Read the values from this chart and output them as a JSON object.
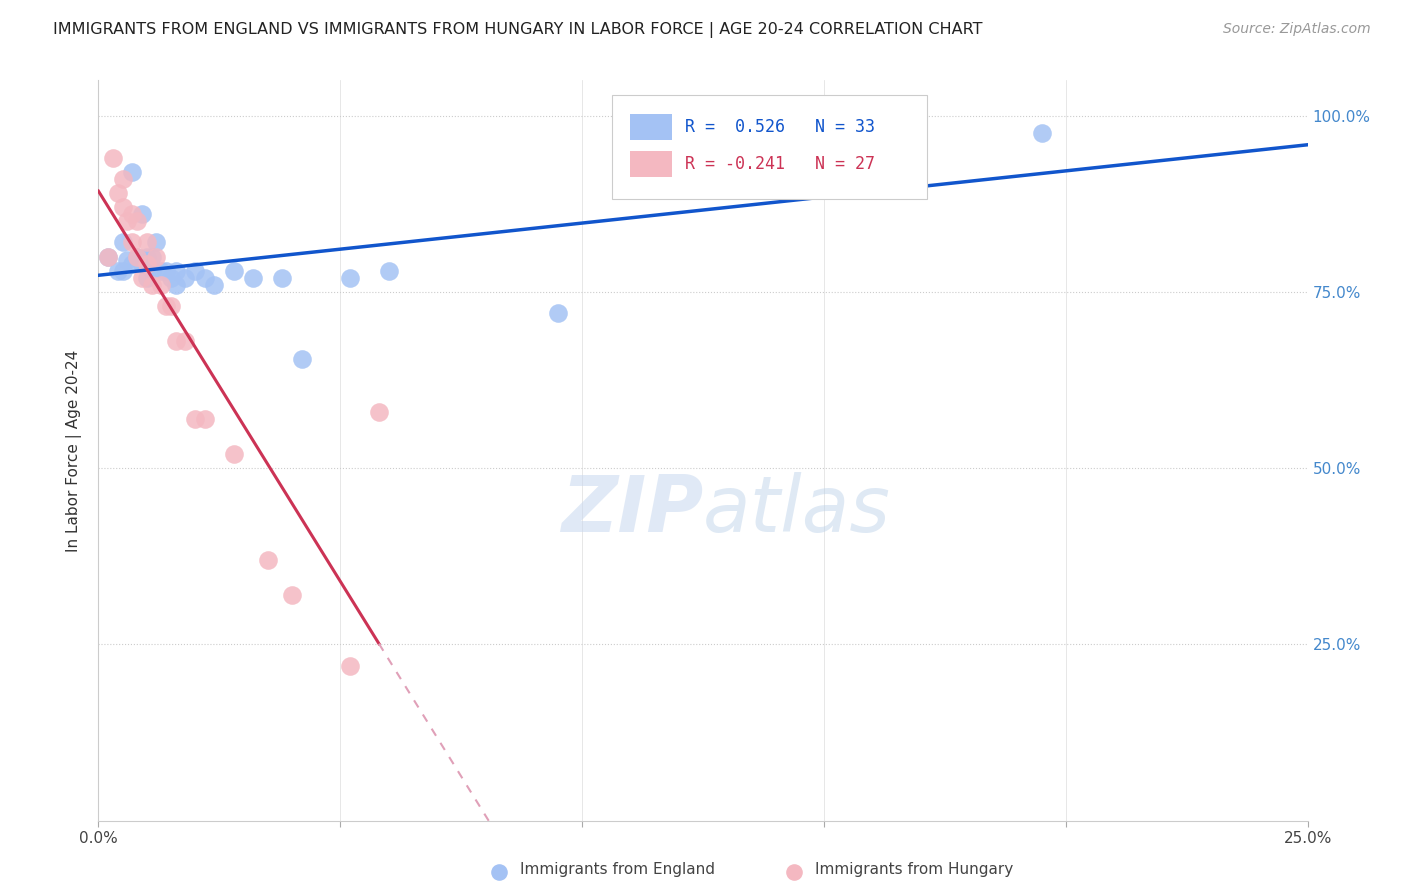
{
  "title": "IMMIGRANTS FROM ENGLAND VS IMMIGRANTS FROM HUNGARY IN LABOR FORCE | AGE 20-24 CORRELATION CHART",
  "source": "Source: ZipAtlas.com",
  "ylabel": "In Labor Force | Age 20-24",
  "xlim": [
    0.0,
    0.25
  ],
  "ylim": [
    0.0,
    1.05
  ],
  "y_ticks_right": [
    0.25,
    0.5,
    0.75,
    1.0
  ],
  "y_tick_labels_right": [
    "25.0%",
    "50.0%",
    "75.0%",
    "100.0%"
  ],
  "england_color": "#a4c2f4",
  "hungary_color": "#f4b8c1",
  "england_R": 0.526,
  "england_N": 33,
  "hungary_R": -0.241,
  "hungary_N": 27,
  "england_line_color": "#1155cc",
  "hungary_line_solid_color": "#cc3355",
  "hungary_line_dash_color": "#e0a0b8",
  "legend_label_england": "Immigrants from England",
  "legend_label_hungary": "Immigrants from Hungary",
  "watermark_zip": "ZIP",
  "watermark_atlas": "atlas",
  "england_x": [
    0.002,
    0.004,
    0.005,
    0.005,
    0.006,
    0.007,
    0.007,
    0.008,
    0.009,
    0.009,
    0.01,
    0.01,
    0.011,
    0.011,
    0.012,
    0.013,
    0.014,
    0.015,
    0.016,
    0.016,
    0.018,
    0.02,
    0.022,
    0.024,
    0.028,
    0.032,
    0.038,
    0.042,
    0.052,
    0.06,
    0.095,
    0.165,
    0.195
  ],
  "england_y": [
    0.8,
    0.78,
    0.78,
    0.82,
    0.795,
    0.79,
    0.92,
    0.8,
    0.79,
    0.86,
    0.77,
    0.8,
    0.78,
    0.8,
    0.82,
    0.78,
    0.78,
    0.77,
    0.78,
    0.76,
    0.77,
    0.78,
    0.77,
    0.76,
    0.78,
    0.77,
    0.77,
    0.655,
    0.77,
    0.78,
    0.72,
    0.975,
    0.975
  ],
  "hungary_x": [
    0.002,
    0.003,
    0.004,
    0.005,
    0.005,
    0.006,
    0.007,
    0.007,
    0.008,
    0.008,
    0.009,
    0.01,
    0.01,
    0.011,
    0.012,
    0.013,
    0.014,
    0.015,
    0.016,
    0.018,
    0.02,
    0.022,
    0.028,
    0.035,
    0.04,
    0.052,
    0.058
  ],
  "hungary_y": [
    0.8,
    0.94,
    0.89,
    0.91,
    0.87,
    0.85,
    0.86,
    0.82,
    0.8,
    0.85,
    0.77,
    0.79,
    0.82,
    0.76,
    0.8,
    0.76,
    0.73,
    0.73,
    0.68,
    0.68,
    0.57,
    0.57,
    0.52,
    0.37,
    0.32,
    0.22,
    0.58
  ]
}
